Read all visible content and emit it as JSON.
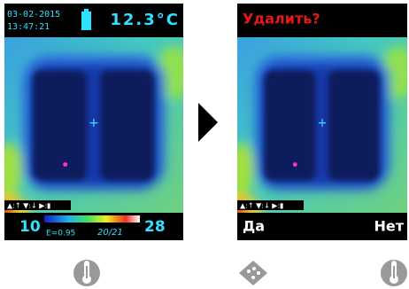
{
  "left_screen": {
    "date": "03-02-2015",
    "time": "13:47:21",
    "temperature": "12.3°C",
    "controls": "▲:↑ ▼:↓ ▶:▮",
    "scale_min": "10",
    "emissivity": "E=0.95",
    "image_count": "20/21",
    "scale_max": "28"
  },
  "right_screen": {
    "prompt": "Удалить?",
    "controls": "▲:↑ ▼:↓ ▶:▮",
    "confirm": "Да",
    "cancel": "Нет"
  }
}
